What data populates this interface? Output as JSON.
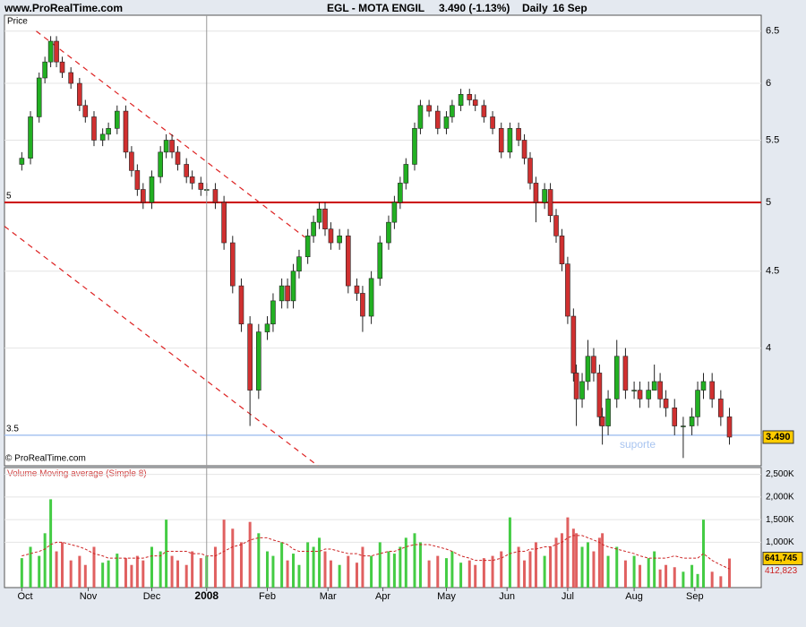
{
  "chart_data": [
    {
      "type": "candlestick",
      "site": "www.ProRealTime.com",
      "title": "EGL - MOTA ENGIL",
      "quote": "3.490 (-1.13%)",
      "period": "Daily",
      "date": "16 Sep",
      "y_label": "Price",
      "copyright": "© ProRealTime.com",
      "annotation": "suporte",
      "log_y": true,
      "grid": true,
      "up_color": "#22b022",
      "down_color": "#d03030",
      "xlim": [
        -6,
        256
      ],
      "xticks": [
        {
          "value": 0,
          "label": "Oct"
        },
        {
          "value": 23,
          "label": "Nov"
        },
        {
          "value": 45,
          "label": "Dec"
        },
        {
          "value": 64,
          "label": "2008"
        },
        {
          "value": 85,
          "label": "Feb"
        },
        {
          "value": 106,
          "label": "Mar"
        },
        {
          "value": 125,
          "label": "Apr"
        },
        {
          "value": 147,
          "label": "May"
        },
        {
          "value": 168,
          "label": "Jun"
        },
        {
          "value": 189,
          "label": "Jul"
        },
        {
          "value": 212,
          "label": "Aug"
        },
        {
          "value": 233,
          "label": "Sep"
        }
      ],
      "ylim": [
        3.34,
        6.66
      ],
      "yticks": [
        4,
        4.5,
        5,
        5.5,
        6,
        6.5
      ],
      "hlines": [
        {
          "value": 5,
          "label": "5",
          "color": "#cc0000"
        },
        {
          "value": 3.5,
          "label": "3.5",
          "color": "#a8c4f0"
        }
      ],
      "trendlines": [
        {
          "color": "#dd2222",
          "x": [
            5,
            98
          ],
          "y": [
            6.5,
            4.74
          ]
        },
        {
          "color": "#dd2222",
          "x": [
            -6,
            102.5
          ],
          "y": [
            4.82,
            3.34
          ]
        }
      ],
      "x": [
        0,
        3,
        6,
        8,
        10,
        12,
        14,
        17,
        20,
        22,
        25,
        28,
        30,
        33,
        36,
        38,
        40,
        42,
        45,
        48,
        50,
        52,
        54,
        57,
        59,
        62,
        64,
        67,
        70,
        73,
        76,
        79,
        82,
        85,
        87,
        90,
        92,
        94,
        96,
        99,
        101,
        103,
        105,
        107,
        110,
        113,
        116,
        118,
        121,
        124,
        127,
        129,
        131,
        133,
        136,
        138,
        141,
        144,
        147,
        149,
        152,
        155,
        157,
        160,
        163,
        166,
        169,
        172,
        174,
        176,
        178,
        181,
        183,
        185,
        187,
        189,
        191,
        192,
        194,
        196,
        198,
        200,
        201,
        203,
        206,
        209,
        212,
        214,
        217,
        219,
        221,
        223,
        226,
        229,
        232,
        234,
        236,
        239,
        242,
        245
      ],
      "open": [
        5.3,
        5.35,
        5.7,
        6.05,
        6.2,
        6.4,
        6.2,
        6.1,
        6.0,
        5.8,
        5.7,
        5.5,
        5.55,
        5.6,
        5.75,
        5.4,
        5.25,
        5.1,
        5.0,
        5.2,
        5.4,
        5.5,
        5.4,
        5.3,
        5.2,
        5.15,
        5.1,
        5.1,
        5.0,
        4.7,
        4.4,
        4.15,
        3.75,
        4.1,
        4.15,
        4.3,
        4.4,
        4.3,
        4.5,
        4.6,
        4.75,
        4.85,
        4.95,
        4.8,
        4.7,
        4.75,
        4.4,
        4.35,
        4.2,
        4.45,
        4.7,
        4.85,
        5.0,
        5.15,
        5.3,
        5.6,
        5.8,
        5.75,
        5.6,
        5.7,
        5.8,
        5.9,
        5.85,
        5.8,
        5.7,
        5.6,
        5.4,
        5.6,
        5.5,
        5.35,
        5.15,
        5.0,
        5.1,
        4.9,
        4.75,
        4.55,
        4.2,
        3.85,
        3.7,
        3.8,
        3.95,
        3.85,
        3.6,
        3.55,
        3.7,
        3.95,
        3.75,
        3.75,
        3.7,
        3.75,
        3.8,
        3.7,
        3.65,
        3.55,
        3.55,
        3.6,
        3.75,
        3.8,
        3.7,
        3.6
      ],
      "high": [
        5.4,
        5.75,
        6.1,
        6.25,
        6.45,
        6.45,
        6.25,
        6.15,
        6.05,
        5.85,
        5.75,
        5.6,
        5.65,
        5.8,
        5.8,
        5.45,
        5.3,
        5.15,
        5.25,
        5.45,
        5.55,
        5.55,
        5.45,
        5.35,
        5.25,
        5.2,
        5.15,
        5.15,
        5.05,
        4.75,
        4.45,
        4.2,
        4.15,
        4.2,
        4.35,
        4.45,
        4.45,
        4.55,
        4.65,
        4.8,
        4.9,
        5.0,
        5.0,
        4.85,
        4.8,
        4.8,
        4.45,
        4.4,
        4.5,
        4.75,
        4.9,
        5.05,
        5.2,
        5.35,
        5.65,
        5.85,
        5.85,
        5.8,
        5.75,
        5.85,
        5.95,
        5.95,
        5.9,
        5.85,
        5.75,
        5.65,
        5.65,
        5.65,
        5.55,
        5.4,
        5.2,
        5.15,
        5.15,
        4.95,
        4.8,
        4.6,
        4.25,
        3.9,
        3.85,
        4.05,
        4.0,
        3.9,
        3.65,
        3.75,
        4.05,
        4.0,
        3.8,
        3.8,
        3.8,
        3.9,
        3.85,
        3.75,
        3.7,
        3.6,
        3.65,
        3.8,
        3.85,
        3.85,
        3.75,
        3.65
      ],
      "low": [
        5.25,
        5.3,
        5.65,
        6.0,
        6.15,
        6.15,
        6.05,
        5.95,
        5.75,
        5.65,
        5.45,
        5.45,
        5.5,
        5.55,
        5.35,
        5.2,
        5.05,
        4.95,
        4.95,
        5.15,
        5.35,
        5.35,
        5.25,
        5.15,
        5.1,
        5.05,
        5.05,
        4.95,
        4.65,
        4.35,
        4.1,
        3.55,
        3.7,
        4.05,
        4.1,
        4.25,
        4.25,
        4.25,
        4.45,
        4.55,
        4.7,
        4.8,
        4.75,
        4.65,
        4.65,
        4.35,
        4.3,
        4.1,
        4.15,
        4.4,
        4.65,
        4.8,
        4.95,
        5.1,
        5.25,
        5.55,
        5.7,
        5.55,
        5.55,
        5.65,
        5.75,
        5.8,
        5.75,
        5.65,
        5.55,
        5.35,
        5.35,
        5.45,
        5.3,
        5.1,
        4.85,
        4.95,
        4.85,
        4.7,
        4.5,
        4.15,
        3.8,
        3.55,
        3.65,
        3.75,
        3.8,
        3.55,
        3.45,
        3.5,
        3.65,
        3.7,
        3.7,
        3.65,
        3.65,
        3.75,
        3.65,
        3.6,
        3.5,
        3.38,
        3.5,
        3.55,
        3.7,
        3.65,
        3.55,
        3.45
      ],
      "close": [
        5.35,
        5.7,
        6.05,
        6.2,
        6.4,
        6.2,
        6.1,
        6.0,
        5.8,
        5.7,
        5.5,
        5.55,
        5.6,
        5.75,
        5.4,
        5.25,
        5.1,
        5.0,
        5.2,
        5.4,
        5.5,
        5.4,
        5.3,
        5.2,
        5.15,
        5.1,
        5.1,
        5.0,
        4.7,
        4.4,
        4.15,
        3.75,
        4.1,
        4.15,
        4.3,
        4.4,
        4.3,
        4.5,
        4.6,
        4.75,
        4.85,
        4.95,
        4.8,
        4.7,
        4.75,
        4.4,
        4.35,
        4.2,
        4.45,
        4.7,
        4.85,
        5.0,
        5.15,
        5.3,
        5.6,
        5.8,
        5.75,
        5.6,
        5.7,
        5.8,
        5.9,
        5.85,
        5.8,
        5.7,
        5.6,
        5.4,
        5.6,
        5.5,
        5.35,
        5.15,
        5.0,
        5.1,
        4.9,
        4.75,
        4.55,
        4.2,
        3.85,
        3.7,
        3.8,
        3.95,
        3.85,
        3.6,
        3.55,
        3.7,
        3.95,
        3.75,
        3.75,
        3.7,
        3.75,
        3.8,
        3.7,
        3.65,
        3.55,
        3.55,
        3.6,
        3.75,
        3.8,
        3.7,
        3.6,
        3.49
      ],
      "value_labels": [
        null,
        null,
        null,
        null,
        null,
        null,
        null,
        null,
        null,
        null,
        null,
        null,
        null,
        null,
        null,
        null,
        null,
        null,
        null,
        null,
        null,
        null,
        null,
        null,
        null,
        null,
        null,
        null,
        null,
        null,
        null,
        null,
        null,
        null,
        null,
        null,
        null,
        null,
        null,
        null,
        null,
        null,
        null,
        null,
        null,
        null,
        null,
        null,
        null,
        null,
        null,
        null,
        null,
        null,
        null,
        null,
        null,
        null,
        null,
        null,
        null,
        null,
        null,
        null,
        null,
        null,
        null,
        null,
        null,
        null,
        null,
        null,
        null,
        null,
        null,
        null,
        null,
        null,
        null,
        null,
        null,
        null,
        null,
        null,
        null,
        null,
        null,
        null,
        null,
        null,
        null,
        null,
        null,
        null,
        null,
        null,
        null,
        null,
        null,
        "3.490"
      ]
    },
    {
      "type": "bar",
      "title": "Volume Moving average (Simple 8)",
      "grid": true,
      "ylim": [
        0,
        2650000
      ],
      "yticks": [
        {
          "value": 1000000,
          "label": "1,000K"
        },
        {
          "value": 1500000,
          "label": "1,500K"
        },
        {
          "value": 2000000,
          "label": "2,000K"
        },
        {
          "value": 2500000,
          "label": "2,500K"
        }
      ],
      "series": [
        {
          "color": "#e06060",
          "up_color": "#44cc44",
          "values": [
            650000,
            900000,
            700000,
            1200000,
            1950000,
            800000,
            1000000,
            600000,
            700000,
            500000,
            900000,
            550000,
            600000,
            750000,
            650000,
            500000,
            700000,
            600000,
            900000,
            800000,
            1500000,
            700000,
            600000,
            500000,
            800000,
            650000,
            700000,
            900000,
            1500000,
            1300000,
            1000000,
            1450000,
            1200000,
            800000,
            700000,
            1000000,
            600000,
            750000,
            500000,
            1000000,
            900000,
            1100000,
            800000,
            600000,
            500000,
            700000,
            550000,
            900000,
            700000,
            1000000,
            800000,
            750000,
            900000,
            1100000,
            1200000,
            1000000,
            600000,
            700000,
            650000,
            800000,
            550000,
            600000,
            500000,
            650000,
            700000,
            800000,
            1550000,
            900000,
            600000,
            800000,
            1000000,
            700000,
            900000,
            1100000,
            1200000,
            1550000,
            1300000,
            1200000,
            900000,
            1000000,
            800000,
            1100000,
            1200000,
            700000,
            900000,
            600000,
            700000,
            500000,
            650000,
            800000,
            400000,
            500000,
            450000,
            350000,
            500000,
            300000,
            1500000,
            350000,
            250000,
            641745
          ],
          "value_labels": [
            null,
            null,
            null,
            null,
            null,
            null,
            null,
            null,
            null,
            null,
            null,
            null,
            null,
            null,
            null,
            null,
            null,
            null,
            null,
            null,
            null,
            null,
            null,
            null,
            null,
            null,
            null,
            null,
            null,
            null,
            null,
            null,
            null,
            null,
            null,
            null,
            null,
            null,
            null,
            null,
            null,
            null,
            null,
            null,
            null,
            null,
            null,
            null,
            null,
            null,
            null,
            null,
            null,
            null,
            null,
            null,
            null,
            null,
            null,
            null,
            null,
            null,
            null,
            null,
            null,
            null,
            null,
            null,
            null,
            null,
            null,
            null,
            null,
            null,
            null,
            null,
            null,
            null,
            null,
            null,
            null,
            null,
            null,
            null,
            null,
            null,
            null,
            null,
            null,
            null,
            null,
            null,
            null,
            null,
            null,
            null,
            null,
            null,
            null,
            "641,745"
          ]
        },
        {
          "type": "line",
          "color": "#cc2222",
          "values": [
            700000,
            750000,
            800000,
            850000,
            950000,
            1000000,
            1000000,
            950000,
            900000,
            850000,
            750000,
            700000,
            650000,
            650000,
            650000,
            650000,
            650000,
            650000,
            700000,
            700000,
            800000,
            800000,
            800000,
            800000,
            750000,
            750000,
            700000,
            700000,
            800000,
            900000,
            950000,
            1050000,
            1100000,
            1100000,
            1050000,
            1000000,
            950000,
            850000,
            800000,
            800000,
            800000,
            800000,
            850000,
            850000,
            800000,
            750000,
            750000,
            700000,
            700000,
            750000,
            800000,
            800000,
            850000,
            900000,
            950000,
            950000,
            950000,
            900000,
            850000,
            800000,
            700000,
            650000,
            600000,
            600000,
            600000,
            650000,
            750000,
            800000,
            800000,
            850000,
            850000,
            900000,
            900000,
            950000,
            1000000,
            1100000,
            1150000,
            1150000,
            1150000,
            1100000,
            1050000,
            1000000,
            950000,
            900000,
            850000,
            800000,
            750000,
            700000,
            650000,
            650000,
            650000,
            650000,
            700000,
            650000,
            650000,
            650000,
            750000,
            600000,
            500000,
            412823
          ],
          "value_labels": [
            null,
            null,
            null,
            null,
            null,
            null,
            null,
            null,
            null,
            null,
            null,
            null,
            null,
            null,
            null,
            null,
            null,
            null,
            null,
            null,
            null,
            null,
            null,
            null,
            null,
            null,
            null,
            null,
            null,
            null,
            null,
            null,
            null,
            null,
            null,
            null,
            null,
            null,
            null,
            null,
            null,
            null,
            null,
            null,
            null,
            null,
            null,
            null,
            null,
            null,
            null,
            null,
            null,
            null,
            null,
            null,
            null,
            null,
            null,
            null,
            null,
            null,
            null,
            null,
            null,
            null,
            null,
            null,
            null,
            null,
            null,
            null,
            null,
            null,
            null,
            null,
            null,
            null,
            null,
            null,
            null,
            null,
            null,
            null,
            null,
            null,
            null,
            null,
            null,
            null,
            null,
            null,
            null,
            null,
            null,
            null,
            null,
            null,
            null,
            "412,823"
          ]
        }
      ]
    }
  ]
}
